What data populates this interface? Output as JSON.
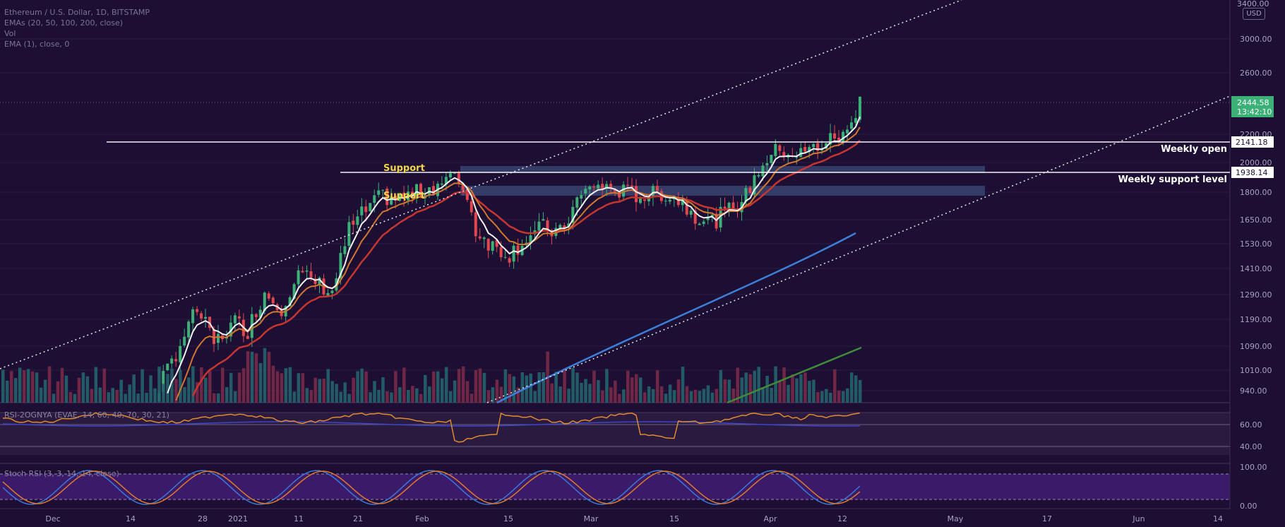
{
  "legend": {
    "symbol": "Ethereum / U.S. Dollar, 1D, BITSTAMP",
    "ema_ribbon": "EMAs (20, 50, 100, 200, close)",
    "volume": "Vol",
    "ema": "EMA (1), close, 0"
  },
  "currency": "USD",
  "price_axis": {
    "top_label": "3400.00",
    "ticks": [
      "3000.00",
      "2600.00",
      "2200.00",
      "2000.00",
      "1800.00",
      "1650.00",
      "1530.00",
      "1410.00",
      "1290.00",
      "1190.00",
      "1090.00",
      "1010.00",
      "940.00"
    ]
  },
  "last_price": {
    "price": "2444.58",
    "countdown": "13:42:10"
  },
  "levels": [
    {
      "name": "weekly-open",
      "value": "2141.18",
      "label": "Weekly open"
    },
    {
      "name": "weekly-support",
      "value": "1938.14",
      "label": "Weekly support level"
    }
  ],
  "support_labels": [
    "Support",
    "Support"
  ],
  "rsi": {
    "label": "RSI-2OGNYA (EVAE, 14, 60, 40, 70, 30, 21)",
    "ticks": [
      "60.00",
      "40.00"
    ]
  },
  "stoch": {
    "label": "Stoch RSI (3, 3, 14, 14, close)",
    "ticks": [
      "100.00",
      "0.00"
    ]
  },
  "time_axis": {
    "labels": [
      "Dec",
      "14",
      "28",
      "2021",
      "11",
      "21",
      "Feb",
      "15",
      "Mar",
      "15",
      "Apr",
      "12",
      "May",
      "17",
      "Jun",
      "14"
    ]
  },
  "colors": {
    "background": "#1d0f33",
    "candle_up": "#3bb077",
    "candle_down": "#e0474f",
    "ema20": "#f2f2f2",
    "ema50": "#d2772e",
    "ema100": "#c7352f",
    "ema200": "#3d7fd9",
    "ema_long": "#3f8c3a",
    "support_zone": "#3c4b78",
    "price_tag": "#3bb077"
  },
  "chart_data": {
    "type": "candlestick",
    "x_range": [
      "2020-11-24",
      "2021-06-18"
    ],
    "y_range": [
      900,
      3400
    ],
    "candles_shown_through": "2021-04-15",
    "ohlc_notes": "Daily ETH/USD candles from late Nov 2020 (~520) rising to ~2445 on 2021-04-15; approximate shape only."
  }
}
